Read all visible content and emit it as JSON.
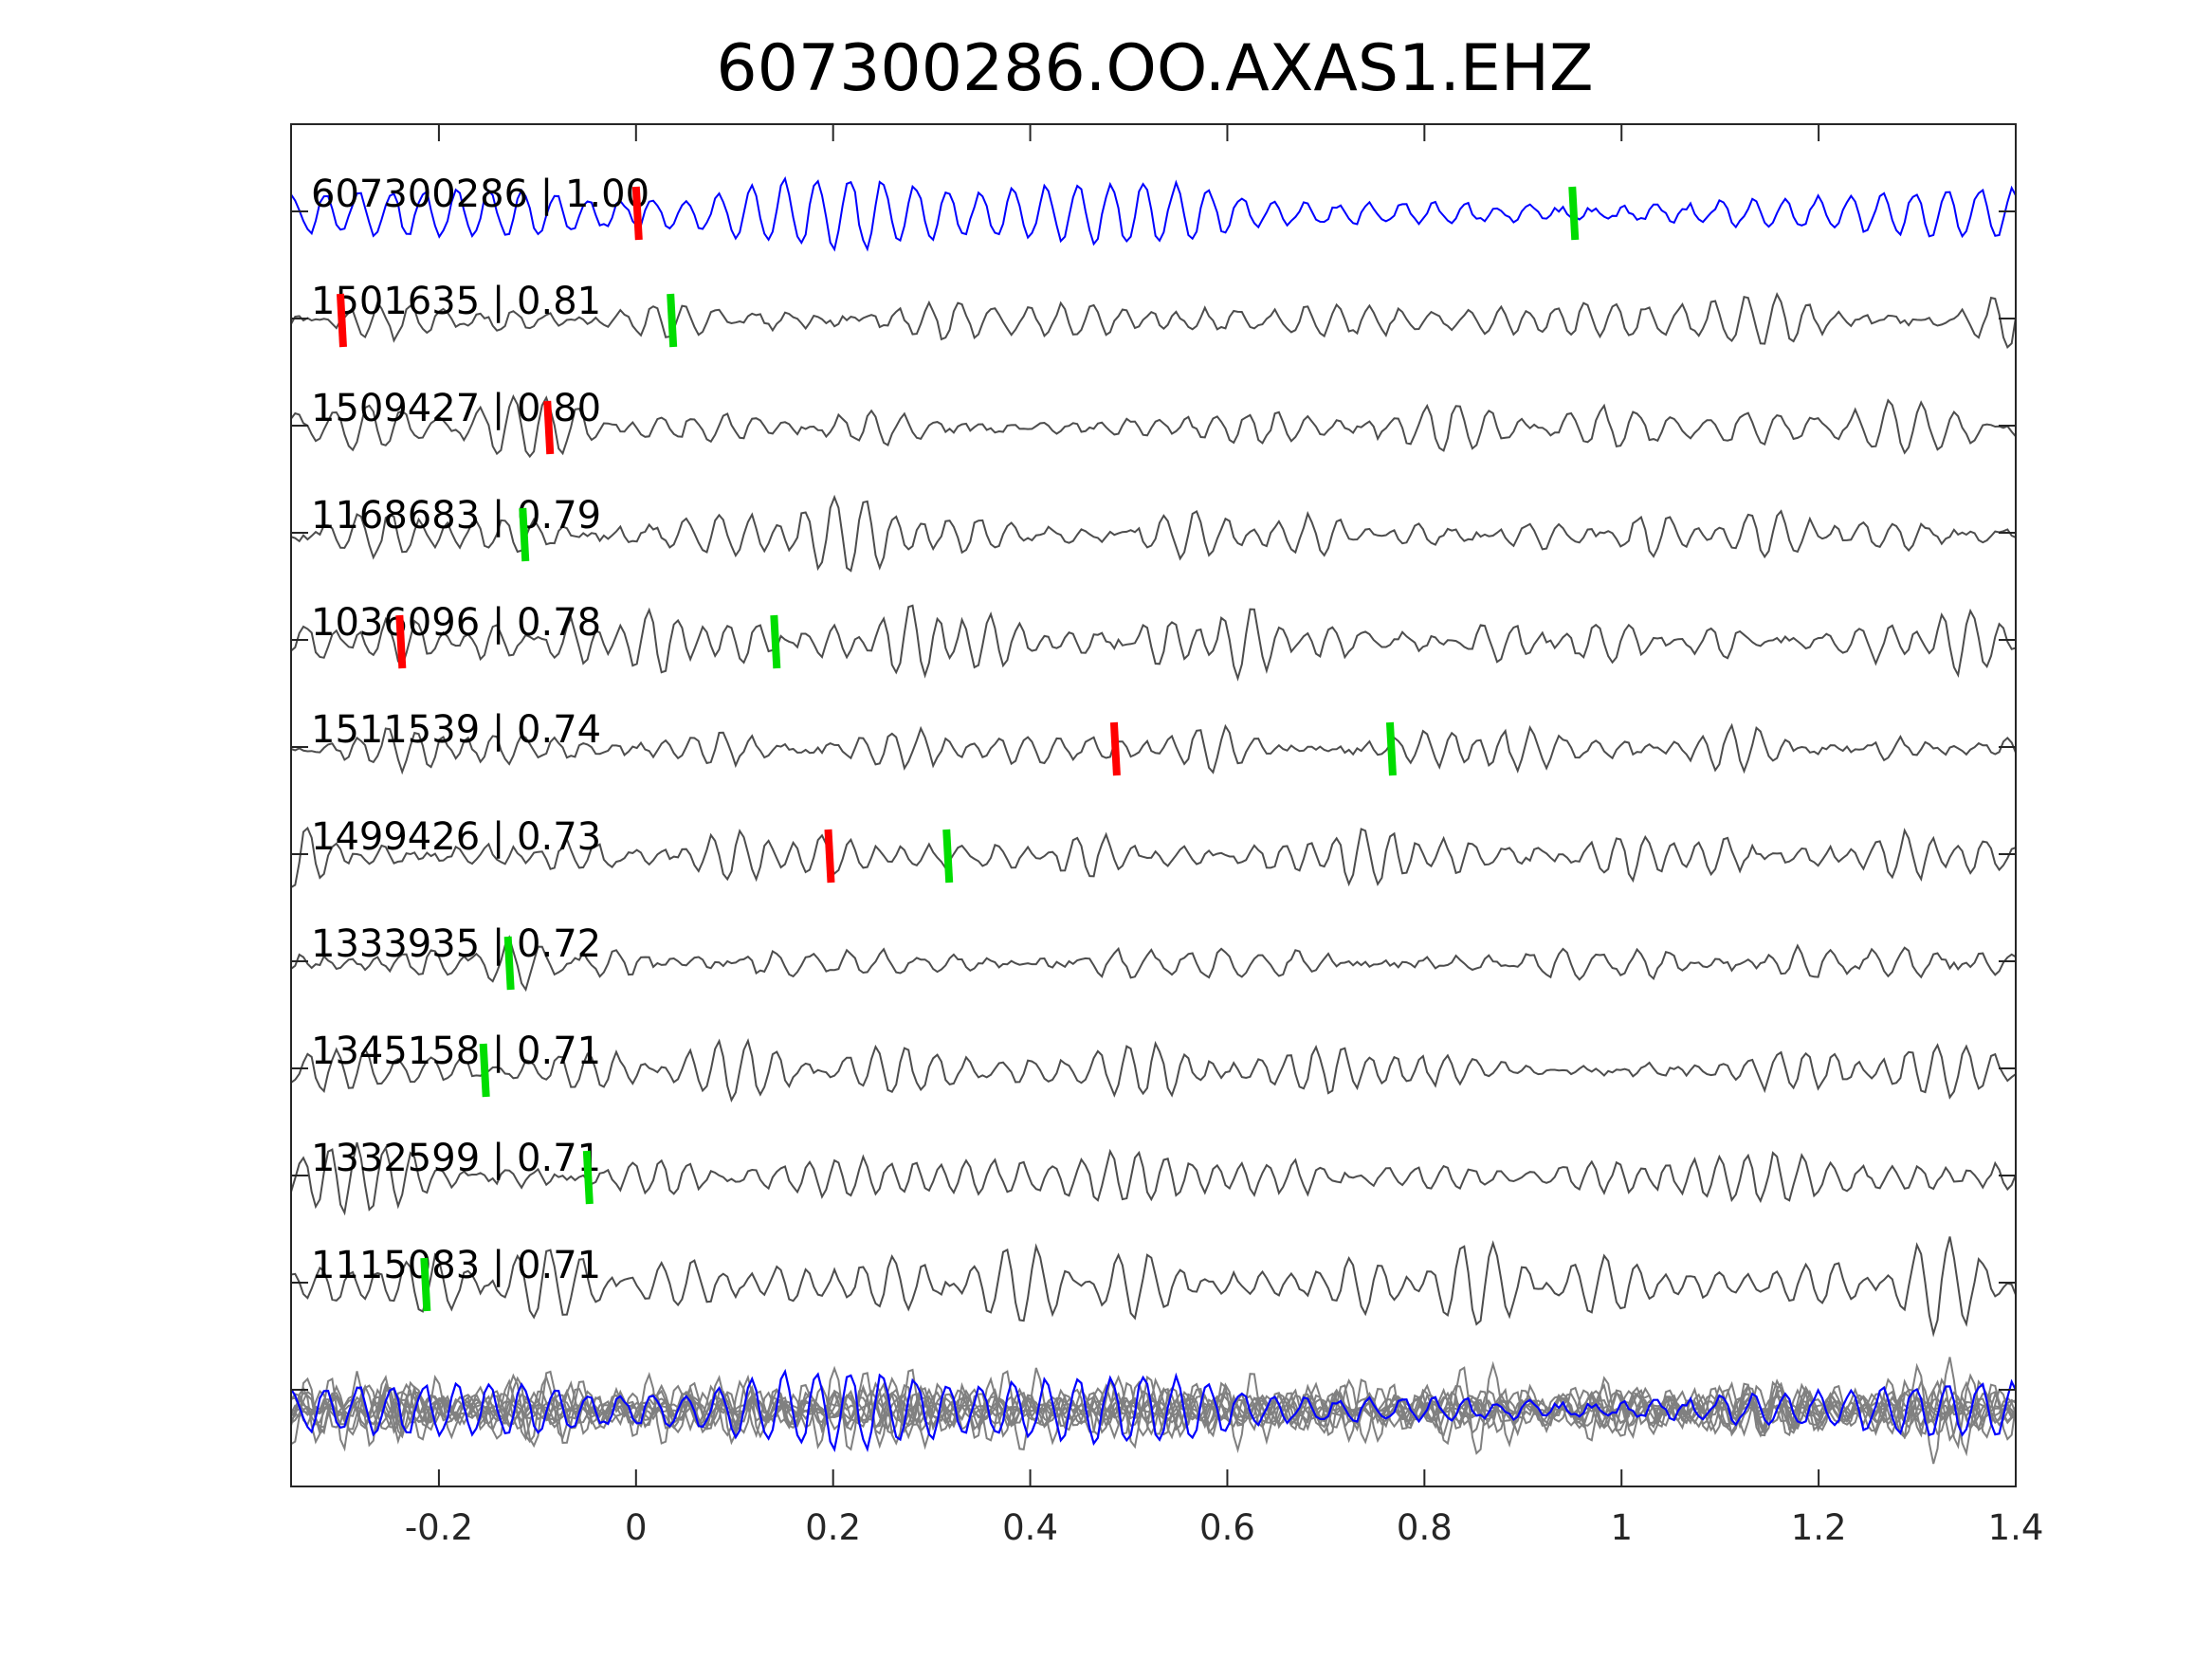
{
  "chart_data": {
    "type": "line",
    "title": "607300286.OO.AXAS1.EHZ",
    "xlabel": "",
    "ylabel": "",
    "xlim": [
      -0.35,
      1.4
    ],
    "xticks": [
      -0.2,
      0,
      0.2,
      0.4,
      0.6,
      0.8,
      1,
      1.2,
      1.4
    ],
    "xtick_labels": [
      "-0.2",
      "0",
      "0.2",
      "0.4",
      "0.6",
      "0.8",
      "1",
      "1.2",
      "1.4"
    ],
    "grid": false,
    "colors": {
      "template": "#0000ff",
      "match": "#4d4d4d",
      "stack": "#808080",
      "pick_red": "#ff0000",
      "pick_green": "#00dd00",
      "axes": "#262626"
    },
    "series": [
      {
        "name": "607300286",
        "cc": "1.00",
        "label": "607300286 | 1.00",
        "template": true,
        "picks": [
          {
            "t": 0.0,
            "phase": "red"
          },
          {
            "t": 0.95,
            "phase": "green"
          }
        ]
      },
      {
        "name": "1501635",
        "cc": "0.81",
        "label": "1501635 | 0.81",
        "picks": [
          {
            "t": -0.3,
            "phase": "red"
          },
          {
            "t": 0.035,
            "phase": "green"
          }
        ]
      },
      {
        "name": "1509427",
        "cc": "0.80",
        "label": "1509427 | 0.80",
        "picks": [
          {
            "t": -0.09,
            "phase": "red"
          }
        ]
      },
      {
        "name": "1168683",
        "cc": "0.79",
        "label": "1168683 | 0.79",
        "picks": [
          {
            "t": -0.115,
            "phase": "green"
          }
        ]
      },
      {
        "name": "1036096",
        "cc": "0.78",
        "label": "1036096 | 0.78",
        "picks": [
          {
            "t": -0.24,
            "phase": "red"
          },
          {
            "t": 0.14,
            "phase": "green"
          }
        ]
      },
      {
        "name": "1511539",
        "cc": "0.74",
        "label": "1511539 | 0.74",
        "picks": [
          {
            "t": 0.485,
            "phase": "red"
          },
          {
            "t": 0.765,
            "phase": "green"
          }
        ]
      },
      {
        "name": "1499426",
        "cc": "0.73",
        "label": "1499426 | 0.73",
        "picks": [
          {
            "t": 0.195,
            "phase": "red"
          },
          {
            "t": 0.315,
            "phase": "green"
          }
        ]
      },
      {
        "name": "1333935",
        "cc": "0.72",
        "label": "1333935 | 0.72",
        "picks": [
          {
            "t": -0.13,
            "phase": "green"
          }
        ]
      },
      {
        "name": "1345158",
        "cc": "0.71",
        "label": "1345158 | 0.71",
        "picks": [
          {
            "t": -0.155,
            "phase": "green"
          }
        ]
      },
      {
        "name": "1332599",
        "cc": "0.71",
        "label": "1332599 | 0.71",
        "picks": [
          {
            "t": -0.05,
            "phase": "green"
          }
        ]
      },
      {
        "name": "1115083",
        "cc": "0.71",
        "label": "1115083 | 0.71",
        "picks": [
          {
            "t": -0.215,
            "phase": "green"
          }
        ]
      }
    ]
  }
}
